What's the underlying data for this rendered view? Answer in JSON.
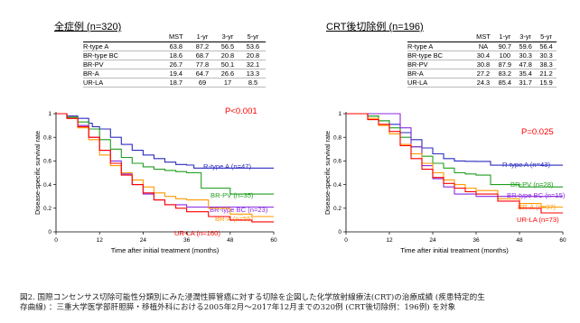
{
  "panels": [
    {
      "title": "全症例 (n=320)",
      "title_main": "全症例",
      "title_n": " (n=320)",
      "table": {
        "headers": [
          "",
          "MST",
          "1-yr",
          "3-yr",
          "5-yr"
        ],
        "rows": [
          [
            "R-type A",
            "63.8",
            "87.2",
            "56.5",
            "53.6"
          ],
          [
            "BR-type BC",
            "18.6",
            "68.7",
            "20.8",
            "20.8"
          ],
          [
            "BR-PV",
            "26.7",
            "77.8",
            "50.1",
            "32.1"
          ],
          [
            "BR-A",
            "19.4",
            "64.7",
            "26.6",
            "13.3"
          ],
          [
            "UR-LA",
            "18.7",
            "69",
            "17",
            "8.5"
          ]
        ]
      },
      "p_value": "P<0.001"
    },
    {
      "title": "CRT後切除例 (n=196)",
      "title_main": "CRT後切除例",
      "title_n": " (n=196)",
      "table": {
        "headers": [
          "",
          "MST",
          "1-yr",
          "3-yr",
          "5-yr"
        ],
        "rows": [
          [
            "R-type A",
            "NA",
            "90.7",
            "59.6",
            "56.4"
          ],
          [
            "BR-type BC",
            "30.4",
            "100",
            "30.3",
            "30.3"
          ],
          [
            "BR-PV",
            "30.8",
            "87.9",
            "47.8",
            "38.3"
          ],
          [
            "BR-A",
            "27.2",
            "83.2",
            "35.4",
            "21.2"
          ],
          [
            "UR-LA",
            "24.3",
            "85.4",
            "31.7",
            "15.9"
          ]
        ]
      },
      "p_value": "P=0.025"
    }
  ],
  "chart_data": [
    {
      "type": "line",
      "title": "",
      "xlabel": "Time after initial treatment (months)",
      "ylabel": "Disease-specific survival rate",
      "xlim": [
        0,
        60
      ],
      "ylim": [
        0,
        1
      ],
      "xticks": [
        0,
        12,
        24,
        36,
        48,
        60
      ],
      "yticks": [
        0,
        0.2,
        0.4,
        0.6,
        0.8,
        1
      ],
      "p_value": "P<0.001",
      "series": [
        {
          "name": "R-type A (n=47)",
          "color": "#2b2bbf",
          "x": [
            0,
            3,
            6,
            9,
            10,
            12,
            15,
            18,
            21,
            24,
            27,
            30,
            33,
            36,
            38,
            45,
            60
          ],
          "y": [
            1,
            0.98,
            0.96,
            0.92,
            0.89,
            0.87,
            0.8,
            0.74,
            0.69,
            0.65,
            0.62,
            0.59,
            0.57,
            0.565,
            0.54,
            0.54,
            0.54
          ]
        },
        {
          "name": "BR-PV (n=35)",
          "color": "#1f9e1f",
          "x": [
            0,
            3,
            6,
            9,
            12,
            15,
            18,
            21,
            24,
            27,
            30,
            33,
            36,
            40,
            48,
            60
          ],
          "y": [
            1,
            0.97,
            0.93,
            0.87,
            0.78,
            0.7,
            0.63,
            0.58,
            0.55,
            0.53,
            0.52,
            0.51,
            0.5,
            0.37,
            0.32,
            0.32
          ]
        },
        {
          "name": "BR-type BC (n=23)",
          "color": "#8a2be2",
          "x": [
            0,
            3,
            6,
            9,
            12,
            15,
            18,
            21,
            24,
            27,
            30,
            36,
            48,
            60
          ],
          "y": [
            1,
            0.96,
            0.9,
            0.8,
            0.69,
            0.6,
            0.49,
            0.4,
            0.32,
            0.27,
            0.23,
            0.21,
            0.21,
            0.21
          ]
        },
        {
          "name": "BR-A (n=55)",
          "color": "#ff9900",
          "x": [
            0,
            3,
            6,
            9,
            12,
            15,
            18,
            21,
            24,
            27,
            30,
            33,
            36,
            42,
            48,
            54,
            60
          ],
          "y": [
            1,
            0.96,
            0.88,
            0.78,
            0.65,
            0.56,
            0.5,
            0.44,
            0.38,
            0.33,
            0.3,
            0.28,
            0.27,
            0.2,
            0.15,
            0.13,
            0.13
          ]
        },
        {
          "name": "UR-LA (n=160)",
          "color": "#ff0000",
          "x": [
            0,
            3,
            6,
            9,
            12,
            15,
            18,
            21,
            24,
            27,
            30,
            33,
            36,
            42,
            48,
            54,
            60
          ],
          "y": [
            1,
            0.96,
            0.89,
            0.8,
            0.69,
            0.58,
            0.48,
            0.4,
            0.33,
            0.27,
            0.23,
            0.2,
            0.17,
            0.13,
            0.1,
            0.085,
            0.085
          ]
        }
      ]
    },
    {
      "type": "line",
      "title": "",
      "xlabel": "Time after initial treatment (months)",
      "ylabel": "Disease-specific survival rate",
      "xlim": [
        0,
        60
      ],
      "ylim": [
        0,
        1
      ],
      "xticks": [
        0,
        12,
        24,
        36,
        48,
        60
      ],
      "yticks": [
        0,
        0.2,
        0.4,
        0.6,
        0.8,
        1
      ],
      "p_value": "P=0.025",
      "series": [
        {
          "name": "R-type A (n=43)",
          "color": "#2b2bbf",
          "x": [
            0,
            6,
            9,
            12,
            15,
            18,
            21,
            24,
            27,
            30,
            33,
            36,
            40,
            60
          ],
          "y": [
            1,
            0.98,
            0.94,
            0.91,
            0.84,
            0.78,
            0.71,
            0.66,
            0.62,
            0.6,
            0.597,
            0.596,
            0.564,
            0.564
          ]
        },
        {
          "name": "BR-PV (n=28)",
          "color": "#1f9e1f",
          "x": [
            0,
            6,
            9,
            12,
            15,
            18,
            21,
            24,
            27,
            30,
            33,
            36,
            40,
            48,
            60
          ],
          "y": [
            1,
            0.98,
            0.94,
            0.88,
            0.8,
            0.72,
            0.64,
            0.58,
            0.54,
            0.5,
            0.49,
            0.48,
            0.4,
            0.38,
            0.38
          ]
        },
        {
          "name": "BR-type BC (n=15)",
          "color": "#8a2be2",
          "x": [
            0,
            9,
            12,
            15,
            18,
            21,
            24,
            27,
            30,
            36,
            48,
            60
          ],
          "y": [
            1,
            1,
            1,
            0.88,
            0.72,
            0.56,
            0.45,
            0.38,
            0.32,
            0.3,
            0.3,
            0.3
          ]
        },
        {
          "name": "BR-A (n=37)",
          "color": "#ff9900",
          "x": [
            0,
            6,
            9,
            12,
            15,
            18,
            21,
            24,
            27,
            30,
            33,
            36,
            42,
            48,
            54,
            60
          ],
          "y": [
            1,
            0.96,
            0.9,
            0.83,
            0.74,
            0.66,
            0.58,
            0.5,
            0.44,
            0.4,
            0.37,
            0.35,
            0.28,
            0.24,
            0.21,
            0.21
          ]
        },
        {
          "name": "UR-LA (n=73)",
          "color": "#ff0000",
          "x": [
            0,
            6,
            9,
            12,
            15,
            18,
            21,
            24,
            27,
            30,
            33,
            36,
            42,
            48,
            54,
            60
          ],
          "y": [
            1,
            0.95,
            0.91,
            0.85,
            0.73,
            0.62,
            0.53,
            0.46,
            0.41,
            0.37,
            0.34,
            0.32,
            0.26,
            0.2,
            0.16,
            0.16
          ]
        }
      ]
    }
  ],
  "caption": {
    "line1": "図2. 国際コンセンサス切除可能性分類別にみた浸潤性膵管癌に対する切除を企図した化学放射線療法(CRT)の治療成績 (疾患特定的生",
    "line2": "存曲線) ：三重大学医学部肝胆膵・移植外科における2005年2月〜2017年12月までの320例 (CRT後切除例：196例) を対象"
  }
}
